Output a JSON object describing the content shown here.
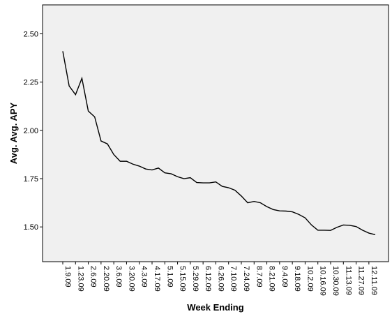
{
  "chart_data": {
    "type": "line",
    "xlabel": "Week Ending",
    "ylabel": "Avg. Avg. APY",
    "ylim": [
      1.32,
      2.65
    ],
    "grid": false,
    "y_ticks": [
      1.5,
      1.75,
      2.0,
      2.25,
      2.5
    ],
    "y_tick_labels": [
      "1.50",
      "1.75",
      "2.00",
      "2.25",
      "2.50"
    ],
    "x_tick_labels": [
      "1.9.09",
      "1.23.09",
      "2.6.09",
      "2.20.09",
      "3.6.09",
      "3.20.09",
      "4.3.09",
      "4.17.09",
      "5.1.09",
      "5.15.09",
      "5.29.09",
      "6.12.09",
      "6.26.09",
      "7.10.09",
      "7.24.09",
      "8.7.09",
      "8.21.09",
      "9.4.09",
      "9.18.09",
      "10.2.09",
      "10.16.09",
      "10.30.09",
      "11.13.09",
      "11.27.09",
      "12.11.09"
    ],
    "series": [
      {
        "values": [
          2.41,
          2.23,
          2.185,
          2.27,
          2.1,
          2.07,
          1.945,
          1.93,
          1.875,
          1.84,
          1.84,
          1.825,
          1.815,
          1.8,
          1.795,
          1.805,
          1.78,
          1.775,
          1.76,
          1.75,
          1.755,
          1.73,
          1.728,
          1.728,
          1.733,
          1.71,
          1.703,
          1.69,
          1.66,
          1.625,
          1.632,
          1.625,
          1.605,
          1.59,
          1.583,
          1.582,
          1.578,
          1.565,
          1.547,
          1.51,
          1.483,
          1.483,
          1.482,
          1.498,
          1.51,
          1.508,
          1.502,
          1.483,
          1.468,
          1.46
        ]
      }
    ],
    "colors": {
      "plot_background": "#f0f0f0",
      "line": "#000000",
      "axis": "#000000"
    }
  }
}
